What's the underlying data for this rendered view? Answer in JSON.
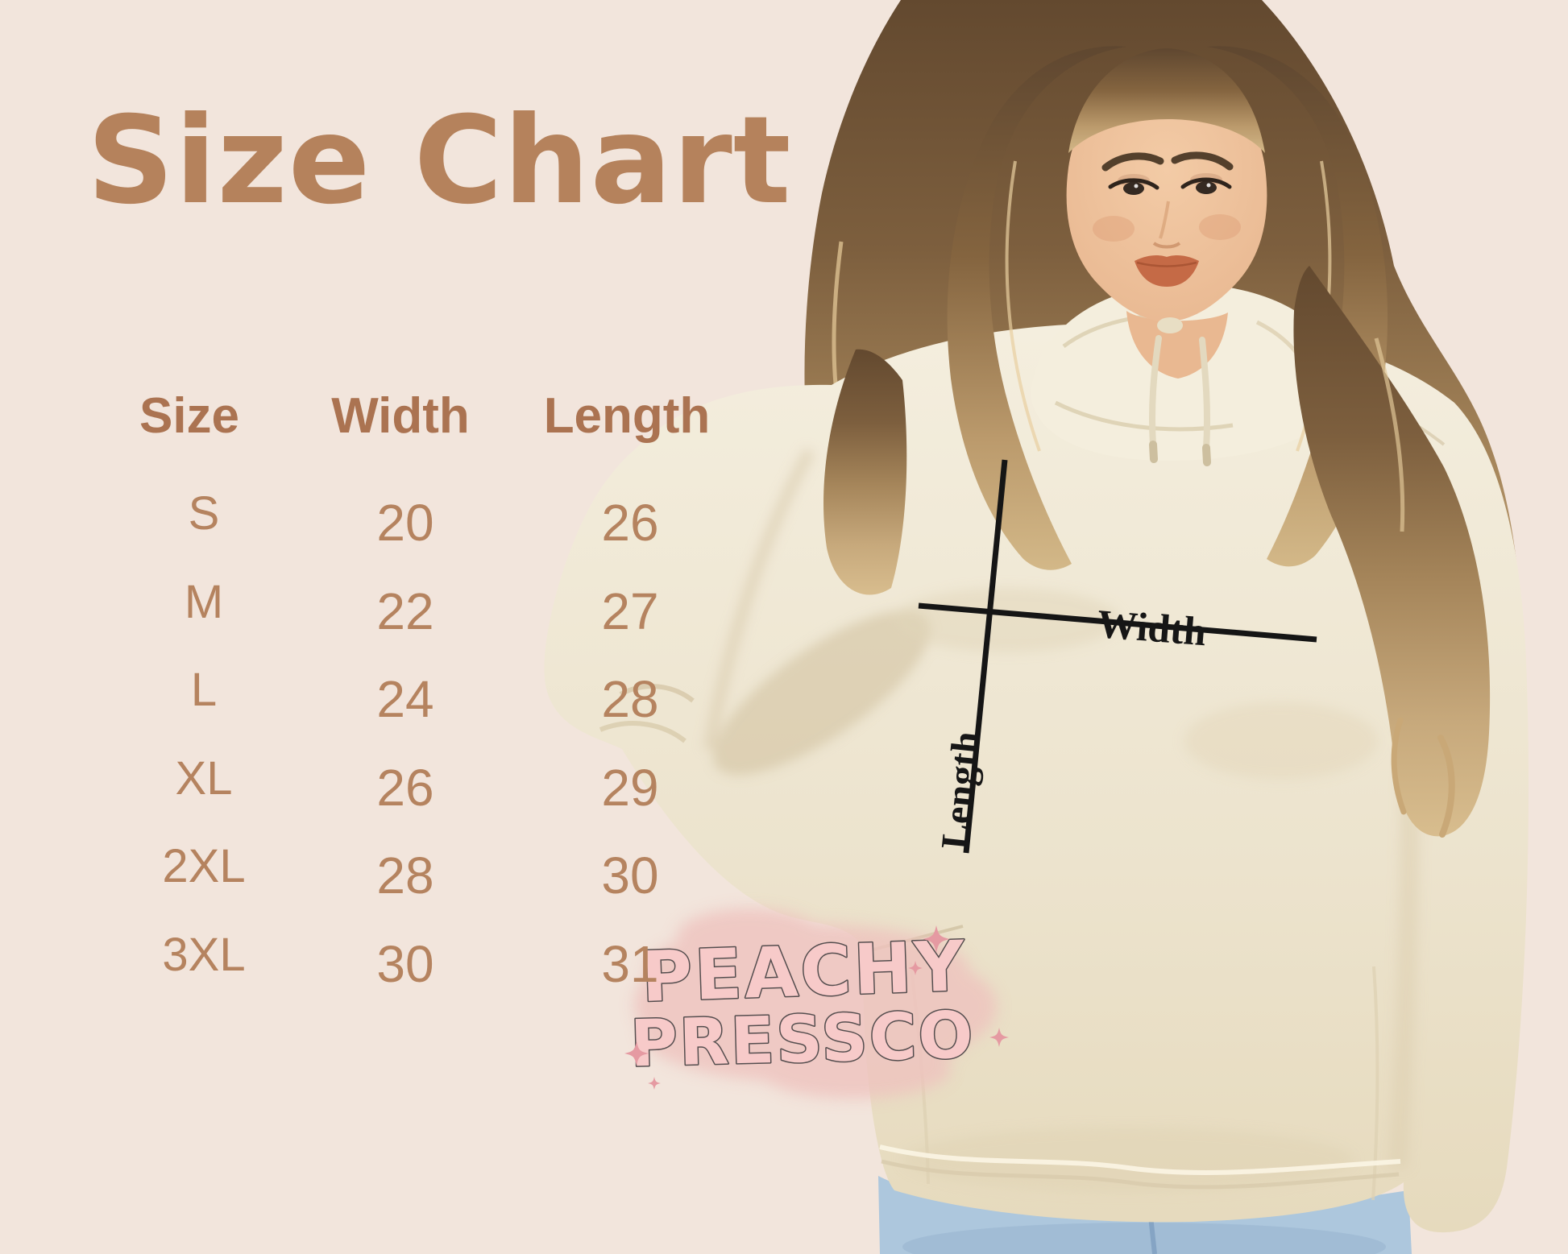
{
  "title": "Size Chart",
  "table": {
    "headers": [
      "Size",
      "Width",
      "Length"
    ],
    "rows": [
      {
        "size": "S",
        "width": "20",
        "length": "26"
      },
      {
        "size": "M",
        "width": "22",
        "length": "27"
      },
      {
        "size": "L",
        "width": "24",
        "length": "28"
      },
      {
        "size": "XL",
        "width": "26",
        "length": "29"
      },
      {
        "size": "2XL",
        "width": "28",
        "length": "30"
      },
      {
        "size": "3XL",
        "width": "30",
        "length": "31"
      }
    ]
  },
  "diagram": {
    "width_label": "Width",
    "length_label": "Length"
  },
  "watermark": {
    "line1": "PEACHY",
    "line2": "PRESSCO"
  },
  "colors": {
    "background": "#f2e5dc",
    "title_brown": "#b5825c",
    "header_brown": "#ab7351",
    "table_text_brown": "#b5835f",
    "measure_line_black": "#151515",
    "hoodie_cream": "#efe8d6",
    "watermark_pink": "#f7cac9",
    "watermark_blob": "#eec2be",
    "jeans_blue": "#adc7dd"
  },
  "chart_data": {
    "type": "table",
    "title": "Size Chart",
    "columns": [
      "Size",
      "Width",
      "Length"
    ],
    "rows": [
      [
        "S",
        20,
        26
      ],
      [
        "M",
        22,
        27
      ],
      [
        "L",
        24,
        28
      ],
      [
        "XL",
        26,
        29
      ],
      [
        "2XL",
        28,
        30
      ],
      [
        "3XL",
        30,
        31
      ]
    ],
    "notes": "Garment measurement chart; Width and Length arrows drawn on hoodie photo"
  }
}
